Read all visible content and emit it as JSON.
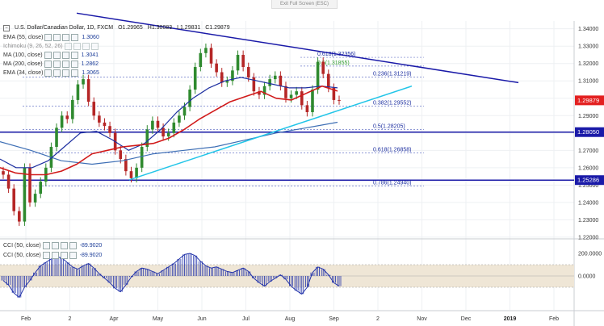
{
  "toolbar": {
    "exit_label": "Exit Full Screen (ESC)"
  },
  "header": {
    "symbol": "U.S. Dollar/Canadian Dollar, 1D, FXCM",
    "ohlc": {
      "o": "O1.29965",
      "h": "H1.30083",
      "l": "L1.29831",
      "c": "C1.29879"
    }
  },
  "indicators": [
    {
      "label": "EMA (55, close)",
      "value": "1.3060"
    },
    {
      "label": "Ichimoku (9, 26, 52, 26)",
      "value": ""
    },
    {
      "label": "MA (100, close)",
      "value": "1.3041"
    },
    {
      "label": "MA (200, close)",
      "value": "1.2862"
    },
    {
      "label": "EMA (34, close)",
      "value": "1.3065"
    }
  ],
  "cci_legend": [
    {
      "label": "CCI (50, close)",
      "value": "-89.9020"
    },
    {
      "label": "CCI (50, close)",
      "value": "-89.9020"
    }
  ],
  "colors": {
    "trendline_dark": "#1a1aa8",
    "trendline_light": "#22c5e8",
    "ma100": "#d11a1a",
    "ema": "#1d2fa0",
    "ma200": "#3e6fb5",
    "bull": "#2f8a2f",
    "bear": "#b52626",
    "cci": "#2233aa",
    "cci_band": "#efe6d6",
    "price_tag": "#e32020",
    "level_tag": "#1a1aa8"
  },
  "chart_data": {
    "type": "line",
    "title": "U.S. Dollar/Canadian Dollar, 1D, FXCM",
    "x_tick_labels": [
      "Feb",
      "2",
      "Apr",
      "May",
      "Jun",
      "Jul",
      "Aug",
      "Sep",
      "2",
      "Nov",
      "Dec",
      "2019",
      "Feb"
    ],
    "y_tick_labels": [
      "1.34000",
      "1.33000",
      "1.32000",
      "1.31000",
      "1.30000",
      "1.29000",
      "1.28000",
      "1.27000",
      "1.26000",
      "1.25000",
      "1.24000",
      "1.23000",
      "1.22000"
    ],
    "ylim": [
      1.2195,
      1.3445
    ],
    "price_close": [
      1.256,
      1.248,
      1.235,
      1.229,
      1.26,
      1.24,
      1.245,
      1.252,
      1.26,
      1.272,
      1.283,
      1.29,
      1.288,
      1.299,
      1.308,
      1.311,
      1.298,
      1.29,
      1.286,
      1.284,
      1.28,
      1.27,
      1.265,
      1.258,
      1.254,
      1.26,
      1.272,
      1.282,
      1.287,
      1.283,
      1.278,
      1.28,
      1.286,
      1.29,
      1.295,
      1.305,
      1.318,
      1.326,
      1.329,
      1.32,
      1.315,
      1.309,
      1.31,
      1.316,
      1.325,
      1.318,
      1.312,
      1.304,
      1.302,
      1.307,
      1.311,
      1.313,
      1.307,
      1.3,
      1.302,
      1.304,
      1.296,
      1.292,
      1.305,
      1.321,
      1.314,
      1.306,
      1.299,
      1.2988
    ],
    "ma100": [
      1.26,
      1.257,
      1.256,
      1.256,
      1.258,
      1.262,
      1.268,
      1.27,
      1.272,
      1.273,
      1.274,
      1.277,
      1.282,
      1.288,
      1.293,
      1.298,
      1.301,
      1.304,
      1.3,
      1.299,
      1.303,
      1.307,
      1.3041
    ],
    "ema55": [
      1.265,
      1.26,
      1.26,
      1.264,
      1.272,
      1.28,
      1.281,
      1.276,
      1.27,
      1.274,
      1.282,
      1.292,
      1.3,
      1.306,
      1.31,
      1.312,
      1.31,
      1.308,
      1.306,
      1.306,
      1.307,
      1.306
    ],
    "ma200": [
      1.275,
      1.27,
      1.264,
      1.262,
      1.264,
      1.268,
      1.27,
      1.272,
      1.276,
      1.28,
      1.283,
      1.2862
    ],
    "trendline_down": {
      "from": [
        "",
        1.349
      ],
      "to": [
        "Nov",
        1.309
      ]
    },
    "trendline_up": {
      "from": [
        "Apr",
        1.253
      ],
      "to": [
        "Sep",
        1.307
      ]
    },
    "horizontal_levels": [
      {
        "label": "1.28050",
        "value": 1.2805
      },
      {
        "label": "1.25286",
        "value": 1.25286
      }
    ],
    "fibonacci": [
      {
        "label": "0.618(1.32356)",
        "value": 1.32356
      },
      {
        "label": "0.5(1.31855)",
        "value": 1.31855
      },
      {
        "label": "0.236(1.31219)",
        "value": 1.31219
      },
      {
        "label": "0.382(1.29552)",
        "value": 1.29552
      },
      {
        "label": "0.5(1.28205)",
        "value": 1.28205
      },
      {
        "label": "0.618(1.26858)",
        "value": 1.26858
      },
      {
        "label": "0.786(1.24940)",
        "value": 1.2494
      }
    ],
    "last_price": {
      "label": "1.29879",
      "value": 1.29879
    },
    "cci": {
      "ylim": [
        -300,
        300
      ],
      "y_tick_labels": [
        "200.0000",
        "0.0000"
      ],
      "band": [
        -100,
        100
      ],
      "values": [
        -40,
        -80,
        -150,
        -190,
        -100,
        -40,
        30,
        90,
        120,
        150,
        170,
        160,
        120,
        80,
        60,
        90,
        110,
        70,
        20,
        -20,
        -60,
        -110,
        -140,
        -80,
        -10,
        40,
        70,
        60,
        40,
        20,
        50,
        80,
        110,
        150,
        190,
        200,
        180,
        130,
        90,
        70,
        80,
        60,
        40,
        30,
        50,
        70,
        40,
        -20,
        -60,
        -90,
        -50,
        -20,
        10,
        -30,
        -90,
        -130,
        -160,
        -100,
        30,
        80,
        60,
        10,
        -60,
        -90
      ]
    }
  }
}
